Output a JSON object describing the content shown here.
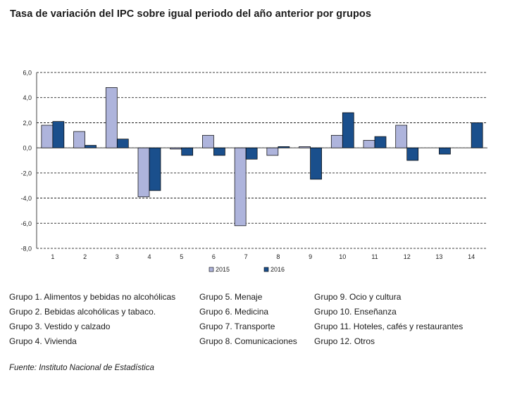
{
  "title": "Tasa de variación del IPC sobre igual periodo del año anterior por grupos",
  "source": "Fuente: Instituto Nacional de Estadística",
  "chart_data": {
    "type": "bar",
    "categories": [
      "1",
      "2",
      "3",
      "4",
      "5",
      "6",
      "7",
      "8",
      "9",
      "10",
      "11",
      "12",
      "13",
      "14"
    ],
    "series": [
      {
        "name": "2015",
        "color": "#aeb4dc",
        "values": [
          1.8,
          1.3,
          4.8,
          -3.9,
          -0.1,
          1.0,
          -6.2,
          -0.6,
          0.1,
          1.0,
          0.6,
          1.8,
          0.0,
          0.0
        ]
      },
      {
        "name": "2016",
        "color": "#1a4f8c",
        "values": [
          2.1,
          0.2,
          0.7,
          -3.4,
          -0.6,
          -0.6,
          -0.9,
          0.1,
          -2.5,
          2.8,
          0.9,
          -1.0,
          -0.5,
          2.0
        ]
      }
    ],
    "y_ticks": [
      "6,0",
      "4,0",
      "2,0",
      "0,0",
      "-2,0",
      "-4,0",
      "-6,0",
      "-8,0"
    ],
    "ylim": [
      -8,
      6
    ],
    "grid": "horizontal-dashed",
    "legend_position": "bottom"
  },
  "groups_legend": [
    [
      "Grupo 1. Alimentos y bebidas no alcohólicas",
      "Grupo 2. Bebidas alcohólicas y  tabaco.",
      "Grupo 3. Vestido y calzado",
      "Grupo 4. Vivienda"
    ],
    [
      "Grupo 5. Menaje",
      "Grupo 6. Medicina",
      "Grupo 7. Transporte",
      "Grupo 8. Comunicaciones"
    ],
    [
      "Grupo 9. Ocio y cultura",
      "Grupo 10. Enseñanza",
      "Grupo 11. Hoteles, cafés y restaurantes",
      "Grupo 12. Otros"
    ]
  ]
}
